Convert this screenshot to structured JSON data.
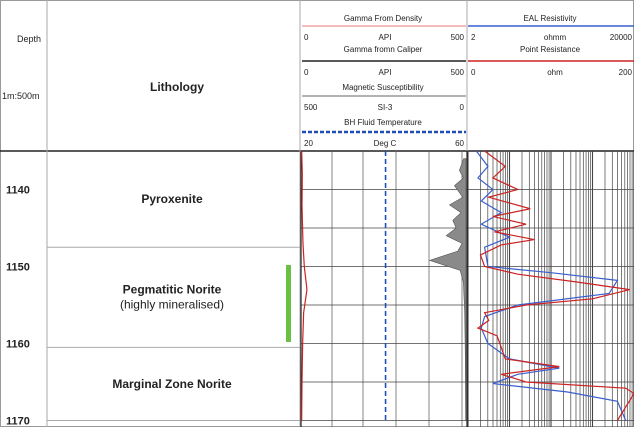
{
  "header": {
    "depth_title": "Depth",
    "scale": "1m:500m",
    "lithology_title": "Lithology"
  },
  "tracks": {
    "gamma_density": {
      "title": "Gamma From Density",
      "min": "0",
      "unit": "API",
      "max": "500",
      "color": "#f4a6a6"
    },
    "gamma_caliper": {
      "title": "Gamma fromn Caliper",
      "min": "0",
      "unit": "API",
      "max": "500",
      "color": "#222222"
    },
    "mag_sus": {
      "title": "Magnetic Susceptibility",
      "min": "500",
      "unit": "SI-3",
      "max": "0",
      "color": "#999999"
    },
    "bh_temp": {
      "title": "BH Fluid Temperature",
      "min": "20",
      "unit": "Deg C",
      "max": "60",
      "color": "#1f4fb5"
    },
    "eal_res": {
      "title": "EAL Resistivity",
      "min": "2",
      "unit": "ohmm",
      "max": "20000",
      "color": "#3a5fcd"
    },
    "point_res": {
      "title": "Point Resistance",
      "min": "0",
      "unit": "ohm",
      "max": "200",
      "color": "#cc2222"
    }
  },
  "lithology": [
    {
      "name": "Pyroxenite",
      "top": 1135,
      "bottom": 1147.5
    },
    {
      "name": "Pegmatitic Norite",
      "sub": "(highly mineralised)",
      "top": 1147.5,
      "bottom": 1160.5
    },
    {
      "name": "Marginal Zone Norite",
      "top": 1160.5,
      "bottom": 1170
    }
  ],
  "depth_ticks": [
    "1140",
    "1150",
    "1160",
    "1170"
  ],
  "mineralised_interval": {
    "top": 1149.8,
    "bottom": 1159.8,
    "color": "#6abf45"
  },
  "chart_data": {
    "type": "line",
    "ylabel": "Depth",
    "ylim": [
      1135,
      1170
    ],
    "series": [
      {
        "name": "BH Fluid Temperature",
        "unit": "Deg C",
        "points": [
          [
            40.5,
            1135
          ],
          [
            40.5,
            1170
          ]
        ]
      },
      {
        "name": "Magnetic Susceptibility",
        "unit": "SI-3",
        "points": [
          [
            7,
            1136
          ],
          [
            20,
            1137.5
          ],
          [
            8,
            1138.5
          ],
          [
            35,
            1139.5
          ],
          [
            10,
            1141
          ],
          [
            50,
            1142
          ],
          [
            15,
            1143
          ],
          [
            40,
            1144
          ],
          [
            30,
            1145
          ],
          [
            60,
            1146
          ],
          [
            12,
            1147
          ],
          [
            25,
            1148
          ],
          [
            110,
            1149.2
          ],
          [
            18,
            1150.5
          ],
          [
            8,
            1152
          ],
          [
            4,
            1156
          ],
          [
            2,
            1162
          ],
          [
            1,
            1170
          ]
        ]
      },
      {
        "name": "Point Resistance",
        "unit": "ohm",
        "points": [
          [
            20,
            1135
          ],
          [
            45,
            1137
          ],
          [
            30,
            1138.5
          ],
          [
            60,
            1140
          ],
          [
            25,
            1141
          ],
          [
            75,
            1142.5
          ],
          [
            30,
            1143.5
          ],
          [
            70,
            1144.5
          ],
          [
            32,
            1145.5
          ],
          [
            80,
            1146.5
          ],
          [
            40,
            1147.2
          ],
          [
            15,
            1148.5
          ],
          [
            20,
            1150
          ],
          [
            60,
            1151
          ],
          [
            130,
            1152
          ],
          [
            195,
            1153
          ],
          [
            150,
            1154.2
          ],
          [
            70,
            1155
          ],
          [
            20,
            1156
          ],
          [
            25,
            1157
          ],
          [
            12,
            1158
          ],
          [
            35,
            1159
          ],
          [
            40,
            1160.5
          ],
          [
            45,
            1162
          ],
          [
            110,
            1163
          ],
          [
            40,
            1164
          ],
          [
            70,
            1165
          ],
          [
            190,
            1165.8
          ],
          [
            200,
            1166.5
          ],
          [
            180,
            1170
          ]
        ]
      },
      {
        "name": "EAL Resistivity",
        "unit": "ohmm",
        "points": [
          [
            0.05,
            1135
          ],
          [
            0.12,
            1137
          ],
          [
            0.06,
            1138.5
          ],
          [
            0.15,
            1140
          ],
          [
            0.08,
            1141.5
          ],
          [
            0.2,
            1143
          ],
          [
            0.08,
            1144.5
          ],
          [
            0.25,
            1146.2
          ],
          [
            0.1,
            1147.5
          ],
          [
            0.12,
            1150
          ],
          [
            0.5,
            1150.8
          ],
          [
            0.9,
            1151.8
          ],
          [
            0.85,
            1153.5
          ],
          [
            0.3,
            1155
          ],
          [
            0.1,
            1156.5
          ],
          [
            0.08,
            1158
          ],
          [
            0.12,
            1160
          ],
          [
            0.25,
            1162
          ],
          [
            0.55,
            1163.2
          ],
          [
            0.3,
            1164
          ],
          [
            0.15,
            1165.2
          ],
          [
            0.6,
            1166.3
          ],
          [
            0.9,
            1167.5
          ],
          [
            0.95,
            1170
          ]
        ]
      },
      {
        "name": "Gamma From Density",
        "unit": "API",
        "points": [
          [
            2,
            1135
          ],
          [
            4,
            1138
          ],
          [
            3,
            1142
          ],
          [
            6,
            1147
          ],
          [
            10,
            1150
          ],
          [
            18,
            1153
          ],
          [
            8,
            1156
          ],
          [
            5,
            1160
          ],
          [
            3,
            1165
          ],
          [
            2,
            1170
          ]
        ]
      }
    ]
  }
}
